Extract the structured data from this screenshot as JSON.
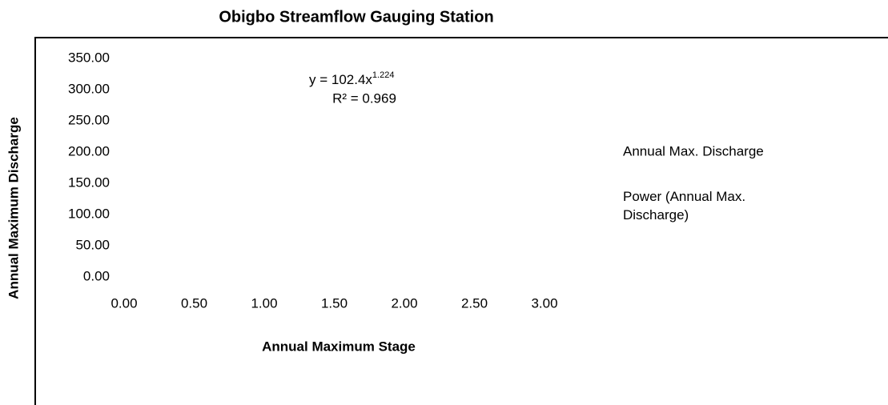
{
  "chart_data": {
    "type": "scatter",
    "title": "Obigbo Streamflow Gauging Station",
    "x_label": "Annual Maximum Stage",
    "y_label": "Annual Maximum Discharge",
    "series": [
      {
        "name": "Annual Max. Discharge",
        "values": []
      },
      {
        "name": "Power (Annual Max. Discharge)",
        "values": []
      }
    ],
    "annotations": {
      "equation": "y = 102.4x",
      "exponent": "1.224",
      "r_squared": "R² = 0.969"
    },
    "xlim": [
      0,
      3
    ],
    "xticks": [
      {
        "value": 0,
        "label": "0.00"
      },
      {
        "value": 0.5,
        "label": "0.50"
      },
      {
        "value": 1,
        "label": "1.00"
      },
      {
        "value": 1.5,
        "label": "1.50"
      },
      {
        "value": 2,
        "label": "2.00"
      },
      {
        "value": 2.5,
        "label": "2.50"
      },
      {
        "value": 3,
        "label": "3.00"
      }
    ],
    "ylim": [
      0,
      350
    ],
    "yticks": [
      {
        "value": 0,
        "label": "0.00"
      },
      {
        "value": 50,
        "label": "50.00"
      },
      {
        "value": 100,
        "label": "100.00"
      },
      {
        "value": 150,
        "label": "150.00"
      },
      {
        "value": 200,
        "label": "200.00"
      },
      {
        "value": 250,
        "label": "250.00"
      },
      {
        "value": 300,
        "label": "300.00"
      },
      {
        "value": 350,
        "label": "350.00"
      }
    ],
    "legend": "right"
  }
}
